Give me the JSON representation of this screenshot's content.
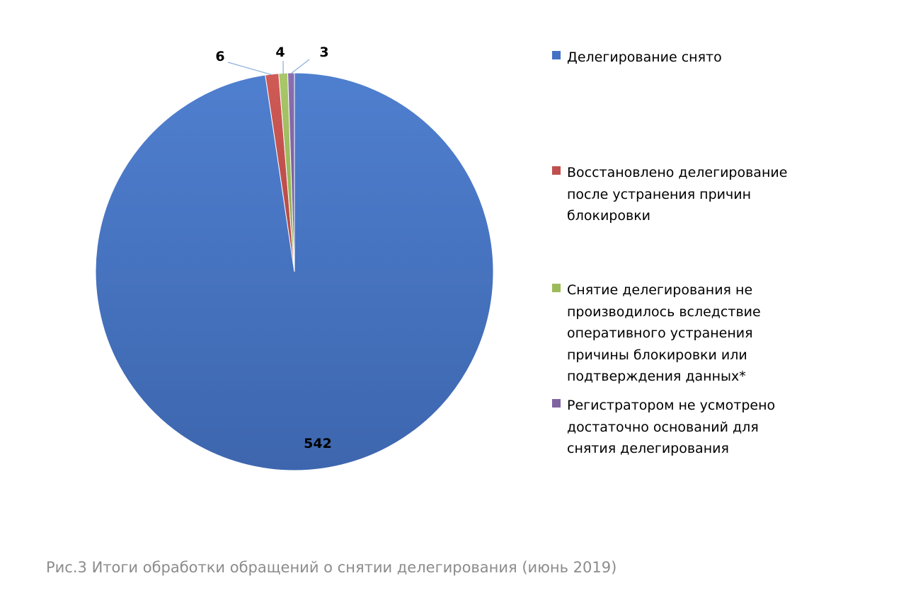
{
  "chart_data": {
    "type": "pie",
    "categories": [
      "Делегирование снято",
      "Восстановлено делегирование после устранения причин блокировки",
      "Снятие делегирования не производилось вследствие оперативного устранения причины блокировки или подтверждения данных*",
      "Регистратором не усмотрено достаточно оснований для снятия делегирования"
    ],
    "values": [
      542,
      6,
      4,
      3
    ],
    "data_labels": [
      "542",
      "6",
      "4",
      "3"
    ],
    "colors": [
      "#4472c4",
      "#c0504d",
      "#9bbb59",
      "#8064a2"
    ],
    "legend": [
      {
        "label": "Делегирование снято",
        "color": "#4472c4"
      },
      {
        "label": "Восстановлено делегирование\nпосле устранения причин\nблокировки",
        "color": "#c0504d"
      },
      {
        "label": "Снятие делегирования не\nпроизводилось вследствие\nоперативного устранения\nпричины блокировки или\nподтверждения данных*",
        "color": "#9bbb59"
      },
      {
        "label": "Регистратором не усмотрено\nдостаточно оснований для\nснятия делегирования",
        "color": "#8064a2"
      }
    ],
    "legend_position": "right"
  },
  "caption": "Рис.3 Итоги обработки обращений о снятии делегирования (июнь 2019)"
}
